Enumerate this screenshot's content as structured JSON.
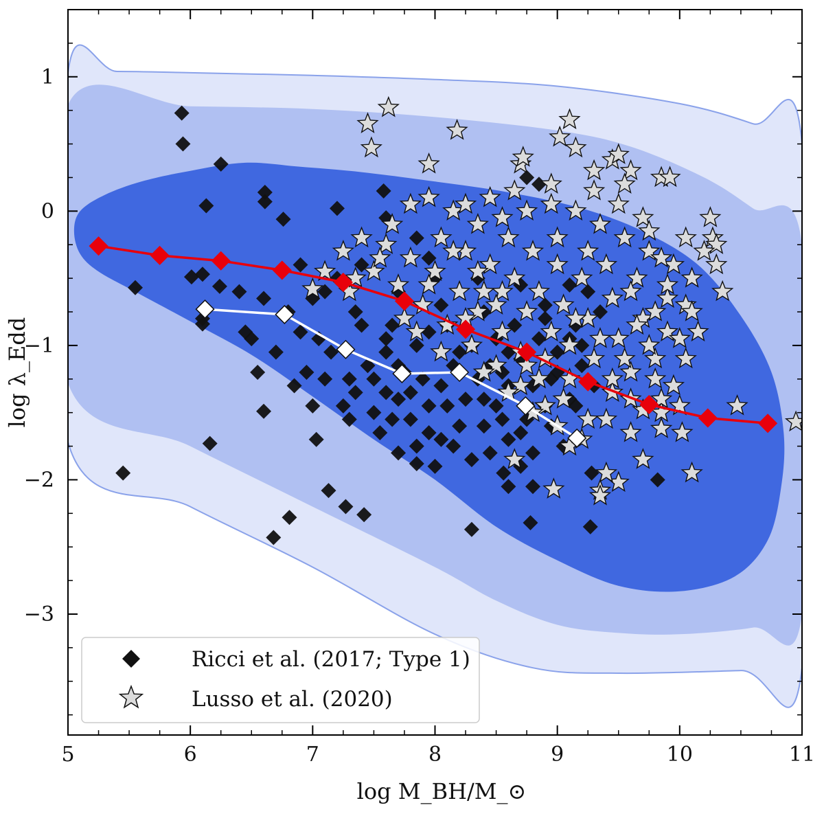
{
  "chart_data": {
    "type": "scatter",
    "xlabel": "log M_BH/M_⊙",
    "ylabel": "log λ_Edd",
    "xlim": [
      5,
      11
    ],
    "ylim": [
      -3.9,
      1.5
    ],
    "xticks": [
      5,
      6,
      7,
      8,
      9,
      10,
      11
    ],
    "xtick_labels": [
      "5",
      "6",
      "7",
      "8",
      "9",
      "10",
      "11"
    ],
    "yticks": [
      -3,
      -2,
      -1,
      0,
      1
    ],
    "ytick_labels": [
      "−3",
      "−2",
      "−1",
      "0",
      "1"
    ],
    "colors": {
      "contour_outer": "#e0e6fa",
      "contour_middle": "#b0c0f2",
      "contour_inner": "#4068e0",
      "contour_edge": "#8aa2ea",
      "red": "#e8000b",
      "ricci_marker": "#111111",
      "lusso_marker": "#dcdcdc"
    },
    "contours": [
      {
        "name": "outer",
        "points": [
          [
            5.0,
            1.03
          ],
          [
            5.4,
            1.04
          ],
          [
            6.0,
            1.03
          ],
          [
            7.0,
            1.01
          ],
          [
            8.0,
            0.98
          ],
          [
            9.0,
            0.93
          ],
          [
            10.0,
            0.8
          ],
          [
            10.6,
            0.65
          ],
          [
            11.0,
            0.5
          ],
          [
            11.0,
            -3.4
          ],
          [
            10.5,
            -3.42
          ],
          [
            9.5,
            -3.44
          ],
          [
            8.8,
            -3.4
          ],
          [
            8.0,
            -3.15
          ],
          [
            7.0,
            -2.65
          ],
          [
            6.0,
            -2.2
          ],
          [
            5.0,
            -1.72
          ]
        ]
      },
      {
        "name": "middle",
        "points": [
          [
            5.0,
            0.79
          ],
          [
            6.0,
            0.78
          ],
          [
            7.0,
            0.76
          ],
          [
            8.0,
            0.7
          ],
          [
            9.0,
            0.6
          ],
          [
            9.6,
            0.48
          ],
          [
            10.2,
            0.25
          ],
          [
            10.6,
            0.02
          ],
          [
            11.0,
            -0.25
          ],
          [
            11.0,
            -3.0
          ],
          [
            10.6,
            -3.1
          ],
          [
            10.0,
            -3.15
          ],
          [
            9.5,
            -3.14
          ],
          [
            9.0,
            -3.08
          ],
          [
            8.5,
            -2.9
          ],
          [
            8.0,
            -2.65
          ],
          [
            7.0,
            -2.2
          ],
          [
            6.0,
            -1.75
          ],
          [
            5.0,
            -1.28
          ]
        ]
      },
      {
        "name": "inner",
        "points": [
          [
            6.45,
            0.36
          ],
          [
            6.9,
            0.33
          ],
          [
            7.4,
            0.29
          ],
          [
            8.0,
            0.22
          ],
          [
            8.6,
            0.14
          ],
          [
            9.2,
            0.02
          ],
          [
            9.7,
            -0.15
          ],
          [
            10.15,
            -0.4
          ],
          [
            10.5,
            -0.78
          ],
          [
            10.75,
            -1.2
          ],
          [
            10.85,
            -1.65
          ],
          [
            10.83,
            -2.05
          ],
          [
            10.72,
            -2.45
          ],
          [
            10.45,
            -2.72
          ],
          [
            10.0,
            -2.83
          ],
          [
            9.5,
            -2.79
          ],
          [
            9.0,
            -2.6
          ],
          [
            8.5,
            -2.35
          ],
          [
            8.0,
            -2.0
          ],
          [
            7.5,
            -1.7
          ],
          [
            7.0,
            -1.38
          ],
          [
            6.5,
            -1.07
          ],
          [
            6.0,
            -0.82
          ],
          [
            5.55,
            -0.6
          ],
          [
            5.25,
            -0.45
          ],
          [
            5.1,
            -0.32
          ],
          [
            5.05,
            -0.15
          ],
          [
            5.1,
            0.0
          ],
          [
            5.3,
            0.12
          ],
          [
            5.6,
            0.22
          ],
          [
            6.0,
            0.3
          ]
        ]
      }
    ],
    "series": [
      {
        "name": "red binned median",
        "values": [
          [
            5.25,
            -0.26
          ],
          [
            5.75,
            -0.33
          ],
          [
            6.25,
            -0.37
          ],
          [
            6.75,
            -0.44
          ],
          [
            7.25,
            -0.53
          ],
          [
            7.75,
            -0.67
          ],
          [
            8.25,
            -0.88
          ],
          [
            8.75,
            -1.05
          ],
          [
            9.25,
            -1.27
          ],
          [
            9.75,
            -1.44
          ],
          [
            10.23,
            -1.54
          ],
          [
            10.72,
            -1.58
          ]
        ]
      },
      {
        "name": "white binned median",
        "values": [
          [
            6.12,
            -0.73
          ],
          [
            6.77,
            -0.77
          ],
          [
            7.27,
            -1.03
          ],
          [
            7.73,
            -1.21
          ],
          [
            8.2,
            -1.2
          ],
          [
            8.74,
            -1.45
          ],
          [
            9.16,
            -1.69
          ]
        ]
      }
    ],
    "legend": [
      {
        "label": "Ricci et al. (2017; Type 1)",
        "marker": "diamond"
      },
      {
        "label": "Lusso et al. (2020)",
        "marker": "star"
      }
    ],
    "legend_position": "lower-left",
    "ricci_points": [
      [
        5.93,
        0.73
      ],
      [
        5.94,
        0.5
      ],
      [
        6.25,
        0.35
      ],
      [
        6.61,
        0.14
      ],
      [
        6.61,
        0.07
      ],
      [
        6.13,
        0.04
      ],
      [
        6.76,
        -0.06
      ],
      [
        6.01,
        -0.49
      ],
      [
        5.55,
        -0.57
      ],
      [
        6.1,
        -0.47
      ],
      [
        6.24,
        -0.56
      ],
      [
        6.1,
        -0.8
      ],
      [
        6.1,
        -0.84
      ],
      [
        5.45,
        -1.95
      ],
      [
        6.16,
        -1.73
      ],
      [
        6.6,
        -1.49
      ],
      [
        6.68,
        -2.43
      ],
      [
        6.81,
        -2.28
      ],
      [
        7.13,
        -2.08
      ],
      [
        7.27,
        -2.2
      ],
      [
        7.42,
        -2.26
      ],
      [
        7.03,
        -1.7
      ],
      [
        7.0,
        -1.45
      ],
      [
        6.55,
        -1.2
      ],
      [
        6.5,
        -0.95
      ],
      [
        6.9,
        -0.9
      ],
      [
        7.1,
        -0.6
      ],
      [
        7.2,
        0.02
      ],
      [
        7.58,
        0.15
      ],
      [
        7.6,
        -0.05
      ],
      [
        7.95,
        -0.35
      ],
      [
        8.05,
        -0.7
      ],
      [
        8.3,
        -2.37
      ],
      [
        8.78,
        -2.32
      ],
      [
        9.27,
        -2.35
      ],
      [
        9.28,
        -1.95
      ],
      [
        9.82,
        -2.0
      ],
      [
        8.8,
        -2.05
      ],
      [
        8.56,
        -1.95
      ],
      [
        8.7,
        -1.9
      ],
      [
        7.5,
        -1.5
      ],
      [
        7.7,
        -1.8
      ],
      [
        8.0,
        -1.9
      ],
      [
        8.4,
        -1.6
      ],
      [
        8.6,
        -1.3
      ],
      [
        9.0,
        -1.2
      ],
      [
        9.2,
        -1.0
      ],
      [
        9.35,
        -0.75
      ],
      [
        9.1,
        -0.55
      ],
      [
        8.9,
        -0.8
      ],
      [
        8.5,
        -0.95
      ],
      [
        8.2,
        -1.05
      ],
      [
        7.9,
        -1.25
      ],
      [
        7.6,
        -1.05
      ],
      [
        7.4,
        -0.85
      ],
      [
        7.3,
        -1.25
      ],
      [
        7.6,
        -1.35
      ],
      [
        7.8,
        -1.55
      ],
      [
        8.1,
        -1.45
      ],
      [
        8.35,
        -1.25
      ],
      [
        8.7,
        -1.1
      ],
      [
        8.9,
        -1.45
      ],
      [
        9.05,
        -1.75
      ],
      [
        8.6,
        -1.7
      ],
      [
        8.3,
        -1.85
      ],
      [
        7.95,
        -1.65
      ],
      [
        7.7,
        -1.4
      ],
      [
        7.45,
        -1.15
      ],
      [
        7.15,
        -1.05
      ],
      [
        6.95,
        -1.2
      ],
      [
        7.05,
        -0.95
      ],
      [
        6.8,
        -0.75
      ],
      [
        6.6,
        -0.65
      ],
      [
        6.45,
        -0.9
      ],
      [
        6.7,
        -1.05
      ],
      [
        7.35,
        -0.75
      ],
      [
        7.65,
        -0.85
      ],
      [
        7.85,
        -1.0
      ],
      [
        8.1,
        -0.85
      ],
      [
        8.4,
        -0.75
      ],
      [
        8.65,
        -0.85
      ],
      [
        8.85,
        -0.95
      ],
      [
        9.15,
        -0.85
      ],
      [
        9.3,
        -1.3
      ],
      [
        9.15,
        -1.45
      ],
      [
        8.95,
        -1.6
      ],
      [
        8.75,
        -1.55
      ],
      [
        8.5,
        -1.45
      ],
      [
        8.2,
        -1.6
      ],
      [
        7.85,
        -1.75
      ],
      [
        7.55,
        -1.65
      ],
      [
        7.25,
        -1.45
      ],
      [
        7.1,
        -1.25
      ],
      [
        6.85,
        -1.3
      ],
      [
        7.75,
        -1.2
      ],
      [
        8.05,
        -1.3
      ],
      [
        8.45,
        -1.15
      ],
      [
        8.8,
        -1.3
      ],
      [
        9.0,
        -1.05
      ],
      [
        8.25,
        -1.4
      ],
      [
        7.95,
        -1.45
      ],
      [
        7.65,
        -1.55
      ],
      [
        7.35,
        -1.35
      ],
      [
        8.15,
        -1.15
      ],
      [
        8.55,
        -1.55
      ],
      [
        8.9,
        -0.7
      ],
      [
        9.25,
        -0.6
      ],
      [
        8.7,
        -0.55
      ],
      [
        8.35,
        -0.5
      ],
      [
        8.0,
        -0.5
      ],
      [
        7.7,
        -0.6
      ],
      [
        8.85,
        0.2
      ],
      [
        8.75,
        0.25
      ],
      [
        7.85,
        -0.2
      ],
      [
        7.4,
        -0.4
      ],
      [
        7.2,
        -0.5
      ],
      [
        7.0,
        -0.65
      ],
      [
        6.9,
        -0.4
      ],
      [
        6.4,
        -0.6
      ],
      [
        8.6,
        -2.05
      ],
      [
        7.85,
        -1.88
      ],
      [
        8.45,
        -1.8
      ],
      [
        8.7,
        -1.65
      ],
      [
        9.1,
        -1.4
      ],
      [
        8.05,
        -1.7
      ],
      [
        7.3,
        -1.55
      ],
      [
        7.5,
        -1.25
      ],
      [
        7.7,
        -1.15
      ],
      [
        8.3,
        -1.0
      ],
      [
        8.55,
        -1.2
      ],
      [
        8.95,
        -1.25
      ],
      [
        9.2,
        -1.15
      ],
      [
        8.15,
        -1.75
      ],
      [
        7.8,
        -1.35
      ],
      [
        8.4,
        -1.4
      ],
      [
        8.8,
        -1.8
      ],
      [
        7.6,
        -0.95
      ],
      [
        7.95,
        -0.9
      ],
      [
        8.6,
        -1.05
      ],
      [
        9.1,
        -0.95
      ]
    ],
    "lusso_points": [
      [
        7.45,
        0.65
      ],
      [
        7.62,
        0.77
      ],
      [
        7.48,
        0.47
      ],
      [
        8.18,
        0.6
      ],
      [
        7.95,
        0.35
      ],
      [
        8.7,
        0.35
      ],
      [
        8.72,
        0.4
      ],
      [
        9.1,
        0.68
      ],
      [
        9.02,
        0.55
      ],
      [
        9.15,
        0.47
      ],
      [
        9.3,
        0.3
      ],
      [
        9.45,
        0.38
      ],
      [
        9.5,
        0.42
      ],
      [
        9.6,
        0.3
      ],
      [
        9.55,
        0.2
      ],
      [
        9.85,
        0.25
      ],
      [
        9.92,
        0.25
      ],
      [
        10.25,
        -0.05
      ],
      [
        10.27,
        -0.2
      ],
      [
        10.3,
        -0.25
      ],
      [
        10.35,
        -0.6
      ],
      [
        10.47,
        -1.45
      ],
      [
        10.95,
        -1.57
      ],
      [
        10.02,
        -1.65
      ],
      [
        10.1,
        -1.95
      ],
      [
        9.85,
        -1.62
      ],
      [
        9.7,
        -1.85
      ],
      [
        9.6,
        -1.65
      ],
      [
        9.5,
        -2.02
      ],
      [
        9.4,
        -1.95
      ],
      [
        9.35,
        -2.08
      ],
      [
        9.35,
        -2.12
      ],
      [
        9.1,
        -1.75
      ],
      [
        8.97,
        -2.07
      ],
      [
        8.65,
        -1.85
      ],
      [
        9.7,
        -1.48
      ],
      [
        9.85,
        -1.5
      ],
      [
        9.95,
        -1.3
      ],
      [
        10.05,
        -1.1
      ],
      [
        10.15,
        -0.9
      ],
      [
        10.05,
        -0.7
      ],
      [
        9.9,
        -0.9
      ],
      [
        9.8,
        -1.1
      ],
      [
        9.6,
        -1.2
      ],
      [
        9.45,
        -1.35
      ],
      [
        9.25,
        -1.55
      ],
      [
        9.05,
        -1.4
      ],
      [
        8.85,
        -1.25
      ],
      [
        8.7,
        -1.05
      ],
      [
        8.55,
        -0.9
      ],
      [
        8.35,
        -0.75
      ],
      [
        8.2,
        -0.6
      ],
      [
        8.0,
        -0.45
      ],
      [
        7.8,
        -0.35
      ],
      [
        7.6,
        -0.25
      ],
      [
        7.4,
        -0.2
      ],
      [
        7.25,
        -0.3
      ],
      [
        7.1,
        -0.45
      ],
      [
        7.0,
        -0.58
      ],
      [
        7.3,
        -0.6
      ],
      [
        7.5,
        -0.45
      ],
      [
        7.7,
        -0.55
      ],
      [
        7.9,
        -0.7
      ],
      [
        8.1,
        -0.85
      ],
      [
        8.3,
        -1.0
      ],
      [
        8.5,
        -1.15
      ],
      [
        8.7,
        -1.3
      ],
      [
        8.9,
        -1.45
      ],
      [
        9.1,
        -1.25
      ],
      [
        9.3,
        -1.1
      ],
      [
        9.5,
        -0.95
      ],
      [
        9.7,
        -0.8
      ],
      [
        9.9,
        -0.65
      ],
      [
        10.1,
        -0.5
      ],
      [
        9.95,
        -0.4
      ],
      [
        9.75,
        -0.3
      ],
      [
        9.55,
        -0.2
      ],
      [
        9.35,
        -0.1
      ],
      [
        9.15,
        0.0
      ],
      [
        8.95,
        0.05
      ],
      [
        8.75,
        0.0
      ],
      [
        8.55,
        -0.05
      ],
      [
        8.35,
        -0.1
      ],
      [
        8.15,
        0.0
      ],
      [
        7.95,
        0.1
      ],
      [
        7.8,
        0.05
      ],
      [
        7.65,
        -0.1
      ],
      [
        8.05,
        -0.2
      ],
      [
        8.25,
        -0.3
      ],
      [
        8.45,
        -0.4
      ],
      [
        8.65,
        -0.5
      ],
      [
        8.85,
        -0.6
      ],
      [
        9.05,
        -0.7
      ],
      [
        9.25,
        -0.8
      ],
      [
        9.45,
        -0.65
      ],
      [
        9.65,
        -0.5
      ],
      [
        9.85,
        -0.35
      ],
      [
        10.05,
        -0.2
      ],
      [
        8.6,
        -0.2
      ],
      [
        8.8,
        -0.3
      ],
      [
        9.0,
        -0.4
      ],
      [
        9.2,
        -0.5
      ],
      [
        9.4,
        -0.4
      ],
      [
        9.6,
        -0.6
      ],
      [
        9.8,
        -0.75
      ],
      [
        10.0,
        -0.95
      ],
      [
        9.75,
        -1.0
      ],
      [
        9.55,
        -1.1
      ],
      [
        9.35,
        -0.95
      ],
      [
        9.15,
        -0.8
      ],
      [
        8.95,
        -0.9
      ],
      [
        8.75,
        -0.75
      ],
      [
        8.55,
        -0.6
      ],
      [
        8.35,
        -0.45
      ],
      [
        8.15,
        -0.3
      ],
      [
        7.95,
        -0.55
      ],
      [
        7.75,
        -0.8
      ],
      [
        8.05,
        -1.05
      ],
      [
        8.4,
        -1.2
      ],
      [
        8.6,
        -1.35
      ],
      [
        8.8,
        -1.5
      ],
      [
        9.0,
        -1.6
      ],
      [
        9.2,
        -1.7
      ],
      [
        9.4,
        -1.55
      ],
      [
        9.6,
        -1.4
      ],
      [
        9.8,
        -1.25
      ],
      [
        10.0,
        -1.45
      ],
      [
        9.9,
        -0.55
      ],
      [
        10.2,
        -0.3
      ],
      [
        10.3,
        -0.4
      ],
      [
        9.3,
        0.15
      ],
      [
        9.5,
        0.05
      ],
      [
        9.7,
        -0.05
      ],
      [
        8.95,
        0.2
      ],
      [
        8.45,
        0.1
      ],
      [
        8.25,
        0.05
      ],
      [
        8.65,
        0.15
      ],
      [
        7.55,
        -0.35
      ],
      [
        7.35,
        -0.5
      ],
      [
        8.4,
        -0.6
      ],
      [
        8.9,
        -1.1
      ],
      [
        9.1,
        -1.0
      ],
      [
        9.45,
        -1.25
      ],
      [
        9.65,
        -0.85
      ],
      [
        9.85,
        -1.4
      ],
      [
        7.85,
        -0.9
      ],
      [
        8.25,
        -0.8
      ],
      [
        8.5,
        -0.7
      ],
      [
        8.75,
        -1.15
      ],
      [
        9.0,
        -0.2
      ],
      [
        9.25,
        -0.3
      ],
      [
        9.75,
        -0.15
      ],
      [
        10.1,
        -0.75
      ]
    ]
  }
}
